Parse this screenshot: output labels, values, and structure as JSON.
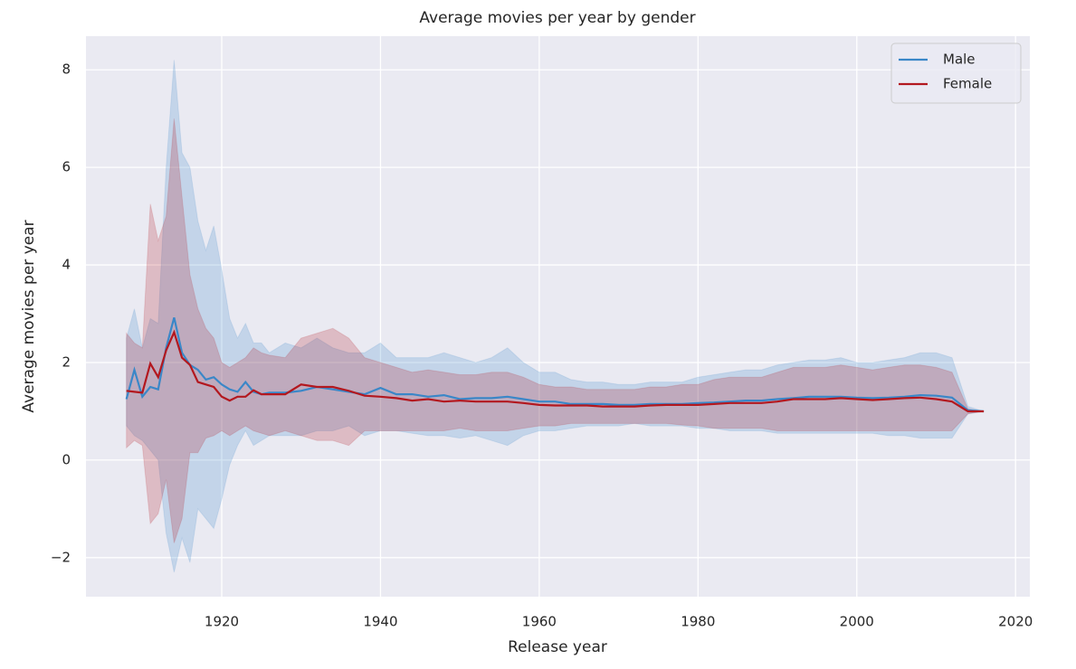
{
  "chart_data": {
    "type": "line_band",
    "title": "Average movies per year by gender",
    "xlabel": "Release year",
    "ylabel": "Average movies per year",
    "xlim": [
      1902.9,
      2021.8
    ],
    "ylim": [
      -2.8,
      8.69
    ],
    "xticks": [
      1920,
      1940,
      1960,
      1980,
      2000,
      2020
    ],
    "yticks": [
      {
        "value": -2,
        "label": "−2"
      },
      0,
      2,
      4,
      6,
      8
    ],
    "grid": true,
    "legend": "upper right",
    "x": [
      1908,
      1909,
      1910,
      1911,
      1912,
      1913,
      1914,
      1915,
      1916,
      1917,
      1918,
      1919,
      1920,
      1921,
      1922,
      1923,
      1924,
      1925,
      1926,
      1928,
      1930,
      1932,
      1934,
      1936,
      1938,
      1940,
      1942,
      1944,
      1946,
      1948,
      1950,
      1952,
      1954,
      1956,
      1958,
      1960,
      1962,
      1964,
      1966,
      1968,
      1970,
      1972,
      1974,
      1976,
      1978,
      1980,
      1982,
      1984,
      1986,
      1988,
      1990,
      1992,
      1994,
      1996,
      1998,
      2000,
      2002,
      2004,
      2006,
      2008,
      2010,
      2012,
      2014,
      2016
    ],
    "series": [
      {
        "name": "Male",
        "color": "#3a87c8",
        "values": [
          1.25,
          1.85,
          1.3,
          1.5,
          1.45,
          2.3,
          2.92,
          2.2,
          1.95,
          1.85,
          1.65,
          1.7,
          1.55,
          1.45,
          1.4,
          1.6,
          1.4,
          1.35,
          1.38,
          1.38,
          1.42,
          1.5,
          1.45,
          1.4,
          1.35,
          1.48,
          1.35,
          1.35,
          1.3,
          1.33,
          1.25,
          1.27,
          1.27,
          1.3,
          1.25,
          1.2,
          1.2,
          1.15,
          1.15,
          1.15,
          1.13,
          1.13,
          1.15,
          1.15,
          1.15,
          1.17,
          1.18,
          1.2,
          1.22,
          1.22,
          1.25,
          1.27,
          1.3,
          1.3,
          1.3,
          1.28,
          1.27,
          1.28,
          1.3,
          1.33,
          1.32,
          1.28,
          1.02,
          1.0
        ],
        "lower": [
          0.7,
          0.5,
          0.4,
          0.2,
          0,
          -1.5,
          -2.3,
          -1.6,
          -2.1,
          -1,
          -1.2,
          -1.4,
          -0.8,
          -0.1,
          0.3,
          0.6,
          0.3,
          0.4,
          0.5,
          0.5,
          0.5,
          0.6,
          0.6,
          0.7,
          0.5,
          0.6,
          0.6,
          0.55,
          0.5,
          0.5,
          0.45,
          0.5,
          0.4,
          0.3,
          0.5,
          0.6,
          0.6,
          0.65,
          0.7,
          0.7,
          0.7,
          0.75,
          0.7,
          0.7,
          0.7,
          0.65,
          0.65,
          0.6,
          0.6,
          0.6,
          0.55,
          0.55,
          0.55,
          0.55,
          0.55,
          0.55,
          0.55,
          0.5,
          0.5,
          0.45,
          0.45,
          0.45,
          0.95,
          1
        ],
        "upper": [
          2.5,
          3.1,
          2.3,
          2.9,
          2.8,
          6,
          8.2,
          6.3,
          6,
          4.9,
          4.3,
          4.8,
          3.9,
          2.9,
          2.5,
          2.8,
          2.4,
          2.4,
          2.2,
          2.4,
          2.3,
          2.5,
          2.3,
          2.2,
          2.2,
          2.4,
          2.1,
          2.1,
          2.1,
          2.2,
          2.1,
          2.0,
          2.1,
          2.3,
          2.0,
          1.8,
          1.8,
          1.65,
          1.6,
          1.6,
          1.55,
          1.55,
          1.6,
          1.6,
          1.6,
          1.7,
          1.75,
          1.8,
          1.85,
          1.85,
          1.95,
          2.0,
          2.05,
          2.05,
          2.1,
          2.0,
          2.0,
          2.05,
          2.1,
          2.2,
          2.2,
          2.1,
          1.1,
          1
        ]
      },
      {
        "name": "Female",
        "color": "#b3181f",
        "values": [
          1.42,
          1.4,
          1.38,
          1.98,
          1.7,
          2.25,
          2.62,
          2.1,
          1.95,
          1.6,
          1.55,
          1.5,
          1.3,
          1.22,
          1.3,
          1.3,
          1.43,
          1.35,
          1.35,
          1.35,
          1.55,
          1.5,
          1.5,
          1.42,
          1.32,
          1.3,
          1.27,
          1.22,
          1.25,
          1.2,
          1.22,
          1.2,
          1.2,
          1.2,
          1.17,
          1.13,
          1.12,
          1.12,
          1.12,
          1.1,
          1.1,
          1.1,
          1.12,
          1.13,
          1.13,
          1.13,
          1.15,
          1.17,
          1.17,
          1.17,
          1.2,
          1.25,
          1.25,
          1.25,
          1.27,
          1.25,
          1.23,
          1.25,
          1.27,
          1.28,
          1.25,
          1.2,
          1.0,
          1.0
        ],
        "lower": [
          0.25,
          0.4,
          0.3,
          -1.3,
          -1.1,
          -0.4,
          -1.7,
          -1.2,
          0.15,
          0.15,
          0.45,
          0.5,
          0.6,
          0.5,
          0.6,
          0.7,
          0.6,
          0.55,
          0.5,
          0.6,
          0.5,
          0.4,
          0.4,
          0.3,
          0.6,
          0.6,
          0.6,
          0.6,
          0.6,
          0.6,
          0.65,
          0.6,
          0.6,
          0.6,
          0.65,
          0.7,
          0.7,
          0.75,
          0.75,
          0.75,
          0.75,
          0.75,
          0.75,
          0.75,
          0.72,
          0.7,
          0.65,
          0.65,
          0.65,
          0.65,
          0.6,
          0.6,
          0.6,
          0.6,
          0.6,
          0.6,
          0.6,
          0.6,
          0.6,
          0.6,
          0.6,
          0.6,
          0.95,
          1
        ],
        "upper": [
          2.6,
          2.4,
          2.3,
          5.25,
          4.5,
          5,
          7,
          5.4,
          3.8,
          3.1,
          2.7,
          2.5,
          2,
          1.9,
          2,
          2.1,
          2.3,
          2.2,
          2.15,
          2.1,
          2.5,
          2.6,
          2.7,
          2.5,
          2.1,
          2.0,
          1.9,
          1.8,
          1.85,
          1.8,
          1.75,
          1.75,
          1.8,
          1.8,
          1.7,
          1.55,
          1.5,
          1.5,
          1.45,
          1.45,
          1.45,
          1.45,
          1.5,
          1.5,
          1.55,
          1.55,
          1.65,
          1.7,
          1.7,
          1.7,
          1.8,
          1.9,
          1.9,
          1.9,
          1.95,
          1.9,
          1.85,
          1.9,
          1.95,
          1.95,
          1.9,
          1.8,
          1.05,
          1
        ]
      }
    ]
  }
}
